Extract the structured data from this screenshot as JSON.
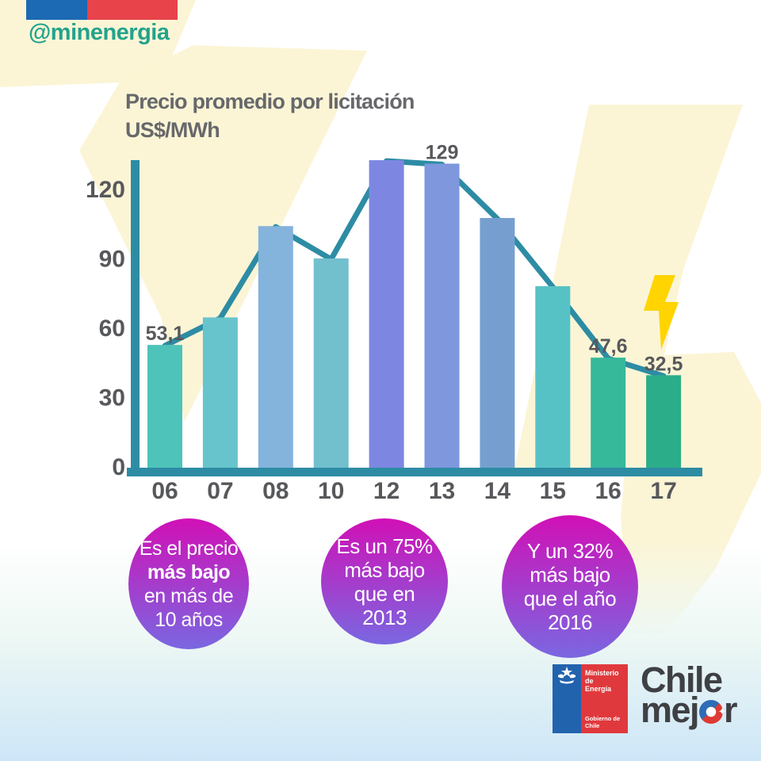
{
  "header": {
    "handle": "@minenergia",
    "flag_blue": "#1c69b4",
    "flag_red": "#e8434a"
  },
  "title": {
    "line1": "Precio promedio por licitación",
    "line2": "US$/MWh"
  },
  "chart_data": {
    "type": "bar",
    "title": "Precio promedio por licitación",
    "ylabel": "US$/MWh",
    "xlabel": "",
    "categories": [
      "06",
      "07",
      "08",
      "10",
      "12",
      "13",
      "14",
      "15",
      "16",
      "17"
    ],
    "values": [
      53.1,
      65,
      104,
      90,
      131,
      129,
      107,
      78,
      47.6,
      32.5
    ],
    "drawn_values": [
      53.1,
      65,
      104.5,
      90.5,
      133,
      131.5,
      108,
      78.5,
      47.6,
      40
    ],
    "data_labels": [
      "53,1",
      "",
      "",
      "",
      "",
      "129",
      "",
      "",
      "47,6",
      "32,5"
    ],
    "yticks": [
      0,
      30,
      60,
      90,
      120
    ],
    "ylim": [
      0,
      135
    ],
    "grid": false,
    "legend": "none",
    "overlay_line": true,
    "bar_colors": [
      "#4ec3b9",
      "#68c4cc",
      "#84b3dc",
      "#72bfce",
      "#7d87e2",
      "#7e97dd",
      "#769fd0",
      "#57c2c5",
      "#36b89b",
      "#2bad8a"
    ],
    "line_color": "#2d8ca4",
    "axis_color": "#2d8ca4",
    "label_color": "#57585b"
  },
  "callouts": [
    {
      "lines": [
        "Es el precio",
        "más bajo",
        "en más de",
        "10 años"
      ],
      "bold_line": 1
    },
    {
      "lines": [
        "Es un 75%",
        "más bajo",
        "que en",
        "2013"
      ],
      "bold_line": -1
    },
    {
      "lines": [
        "Y un 32%",
        "más bajo",
        "que el año",
        "2016"
      ],
      "bold_line": -1
    }
  ],
  "callout_style": {
    "gradient_top": "#d110b6",
    "gradient_bottom": "#7a67e1"
  },
  "footer": {
    "ministry": {
      "line1": "Ministerio de",
      "line2": "Energía",
      "bottom": "Gobierno de Chile",
      "blue": "#2263ae",
      "red": "#e0393d"
    },
    "brand": {
      "line1": "Chile",
      "line2_pre": "mej",
      "line2_post": "r",
      "color": "#3f4044",
      "swirl_blue": "#2e6db5",
      "swirl_red": "#dd3b33",
      "spark": "✦"
    }
  },
  "decor": {
    "pale_yellow": "#fbf4d3",
    "bolt_gold": "#ffd400",
    "bottom_tint_mid": "#eef8f4",
    "bottom_tint_end": "#cde6f7"
  }
}
